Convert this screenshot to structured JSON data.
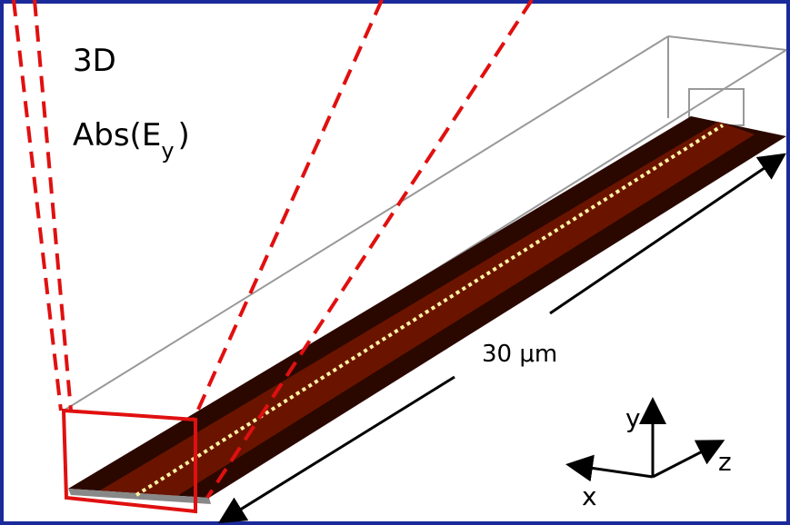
{
  "labels": {
    "mode": "3D",
    "field_prefix": "Abs(E",
    "field_subscript": "y",
    "field_suffix": ")",
    "length": "30 μm"
  },
  "axes": {
    "x": "x",
    "y": "y",
    "z": "z"
  }
}
